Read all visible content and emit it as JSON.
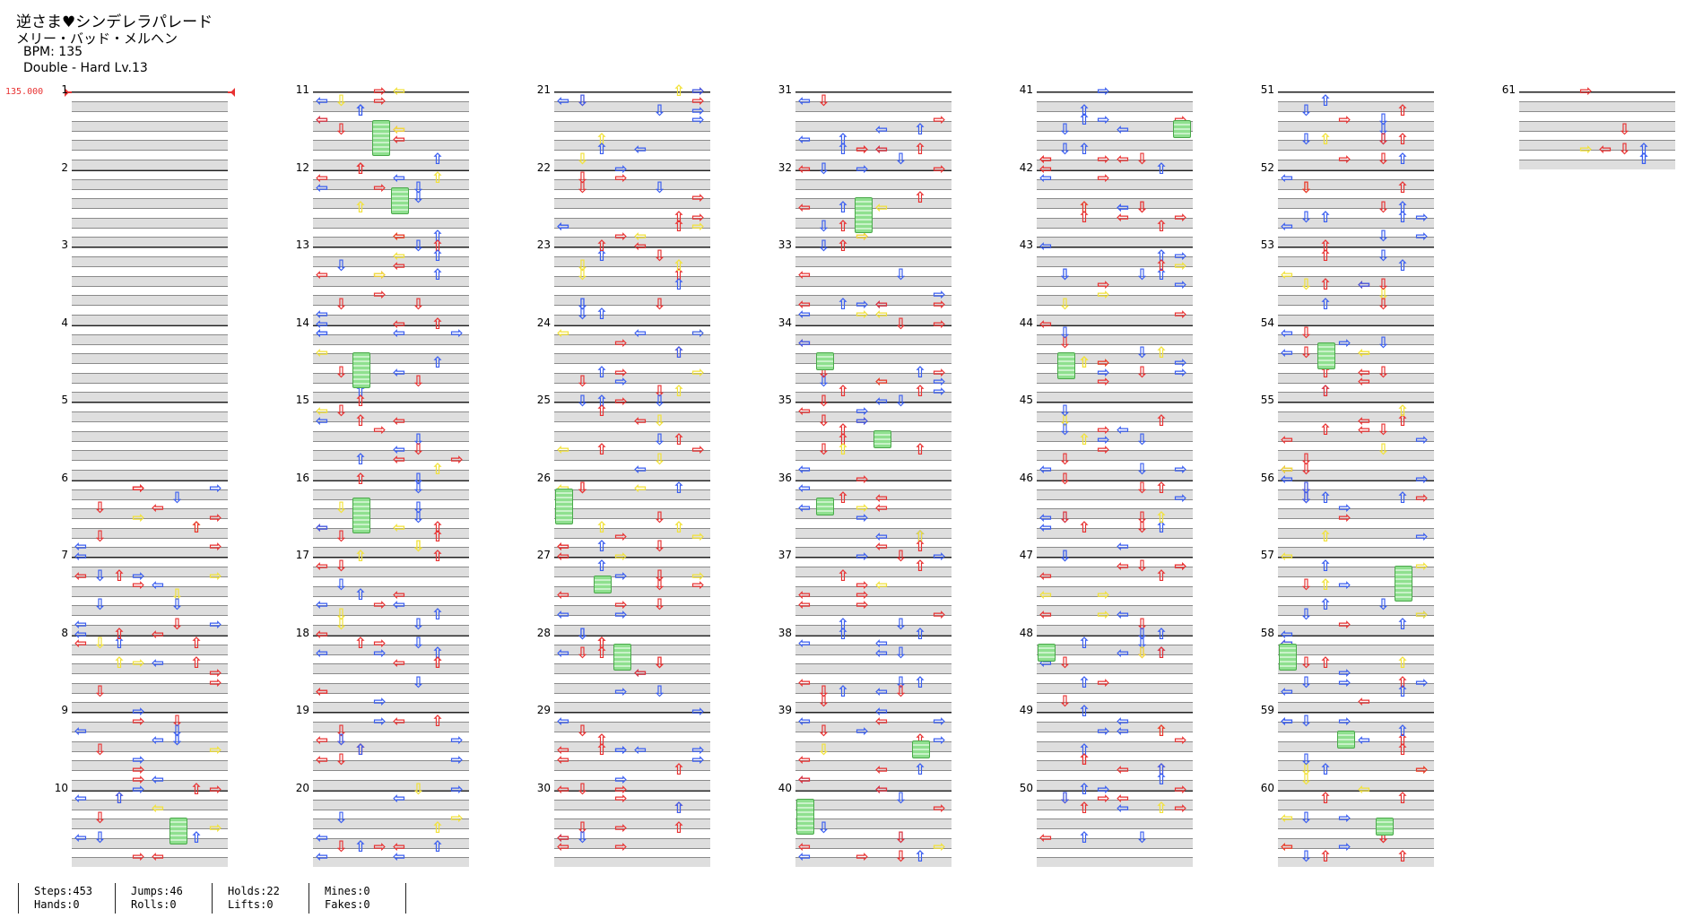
{
  "header": {
    "title": "逆さま♥シンデレラパレード",
    "artist": "メリー・バッド・メルヘン",
    "bpm": "BPM: 135",
    "difficulty": "Double - Hard  Lv.13"
  },
  "bpm_marker": {
    "label": "135.000",
    "color": "#e83232"
  },
  "colors": {
    "red": "#e83232",
    "blue": "#3a5ef0",
    "yellow": "#f2e23a",
    "hold_green": "#8fe08f"
  },
  "measure_numbers": [
    "1",
    "2",
    "3",
    "4",
    "5",
    "6",
    "7",
    "8",
    "9",
    "10",
    "11",
    "12",
    "13",
    "14",
    "15",
    "16",
    "17",
    "18",
    "19",
    "20",
    "21",
    "22",
    "23",
    "24",
    "25",
    "26",
    "27",
    "28",
    "29",
    "30",
    "31",
    "32",
    "33",
    "34",
    "35",
    "36",
    "37",
    "38",
    "39",
    "40",
    "41",
    "42",
    "43",
    "44",
    "45",
    "46",
    "47",
    "48",
    "49",
    "50",
    "51",
    "52",
    "53",
    "54",
    "55",
    "56",
    "57",
    "58",
    "59",
    "60",
    "61"
  ],
  "stats": {
    "steps": "Steps:453",
    "hands": "Hands:0",
    "jumps": "Jumps:46",
    "rolls": "Rolls:0",
    "holds": "Holds:22",
    "lifts": "Lifts:0",
    "mines": "Mines:0",
    "fakes": "Fakes:0"
  }
}
